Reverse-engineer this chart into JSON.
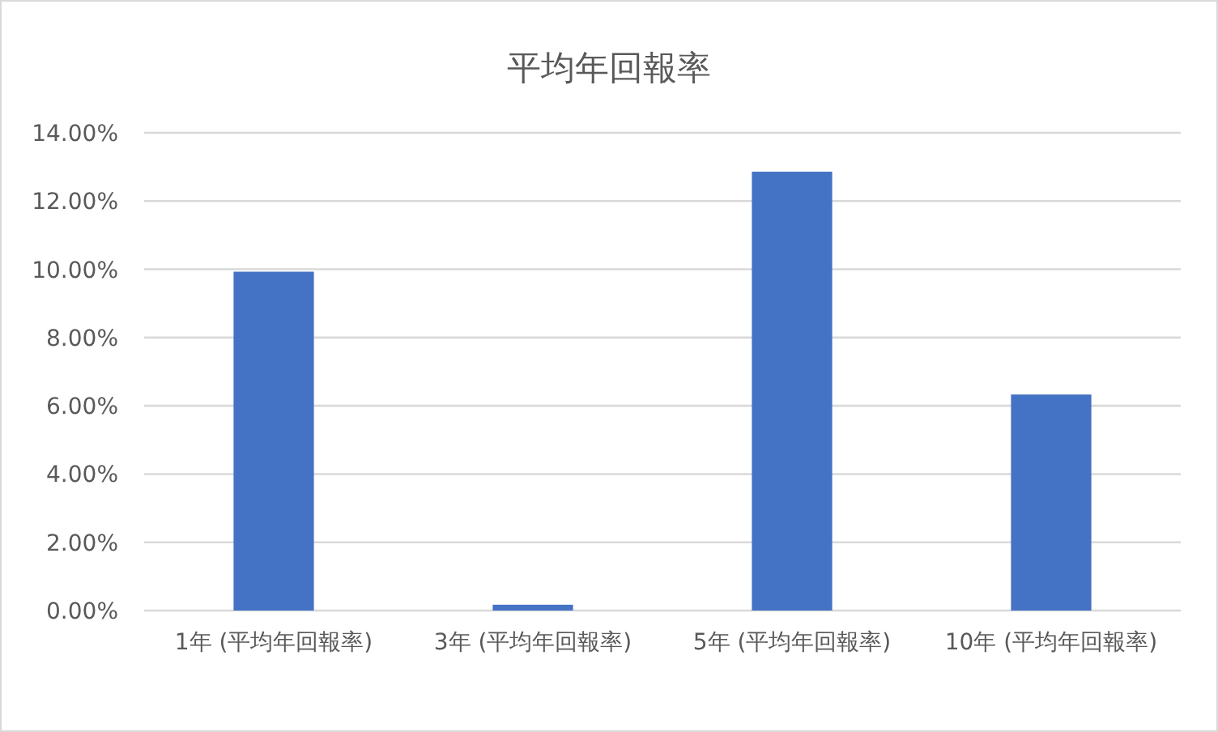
{
  "chart_data": {
    "type": "bar",
    "title": "平均年回報率",
    "categories": [
      "1年 (平均年回報率)",
      "3年 (平均年回報率)",
      "5年 (平均年回報率)",
      "10年 (平均年回報率)"
    ],
    "values": [
      9.93,
      0.17,
      12.86,
      6.33
    ],
    "color": "#4472c4",
    "ylim": [
      0,
      14
    ],
    "yticks": [
      {
        "value": 0,
        "label": "0.00%"
      },
      {
        "value": 2,
        "label": "2.00%"
      },
      {
        "value": 4,
        "label": "4.00%"
      },
      {
        "value": 6,
        "label": "6.00%"
      },
      {
        "value": 8,
        "label": "8.00%"
      },
      {
        "value": 10,
        "label": "10.00%"
      },
      {
        "value": 12,
        "label": "12.00%"
      },
      {
        "value": 14,
        "label": "14.00%"
      }
    ],
    "grid": "y"
  }
}
